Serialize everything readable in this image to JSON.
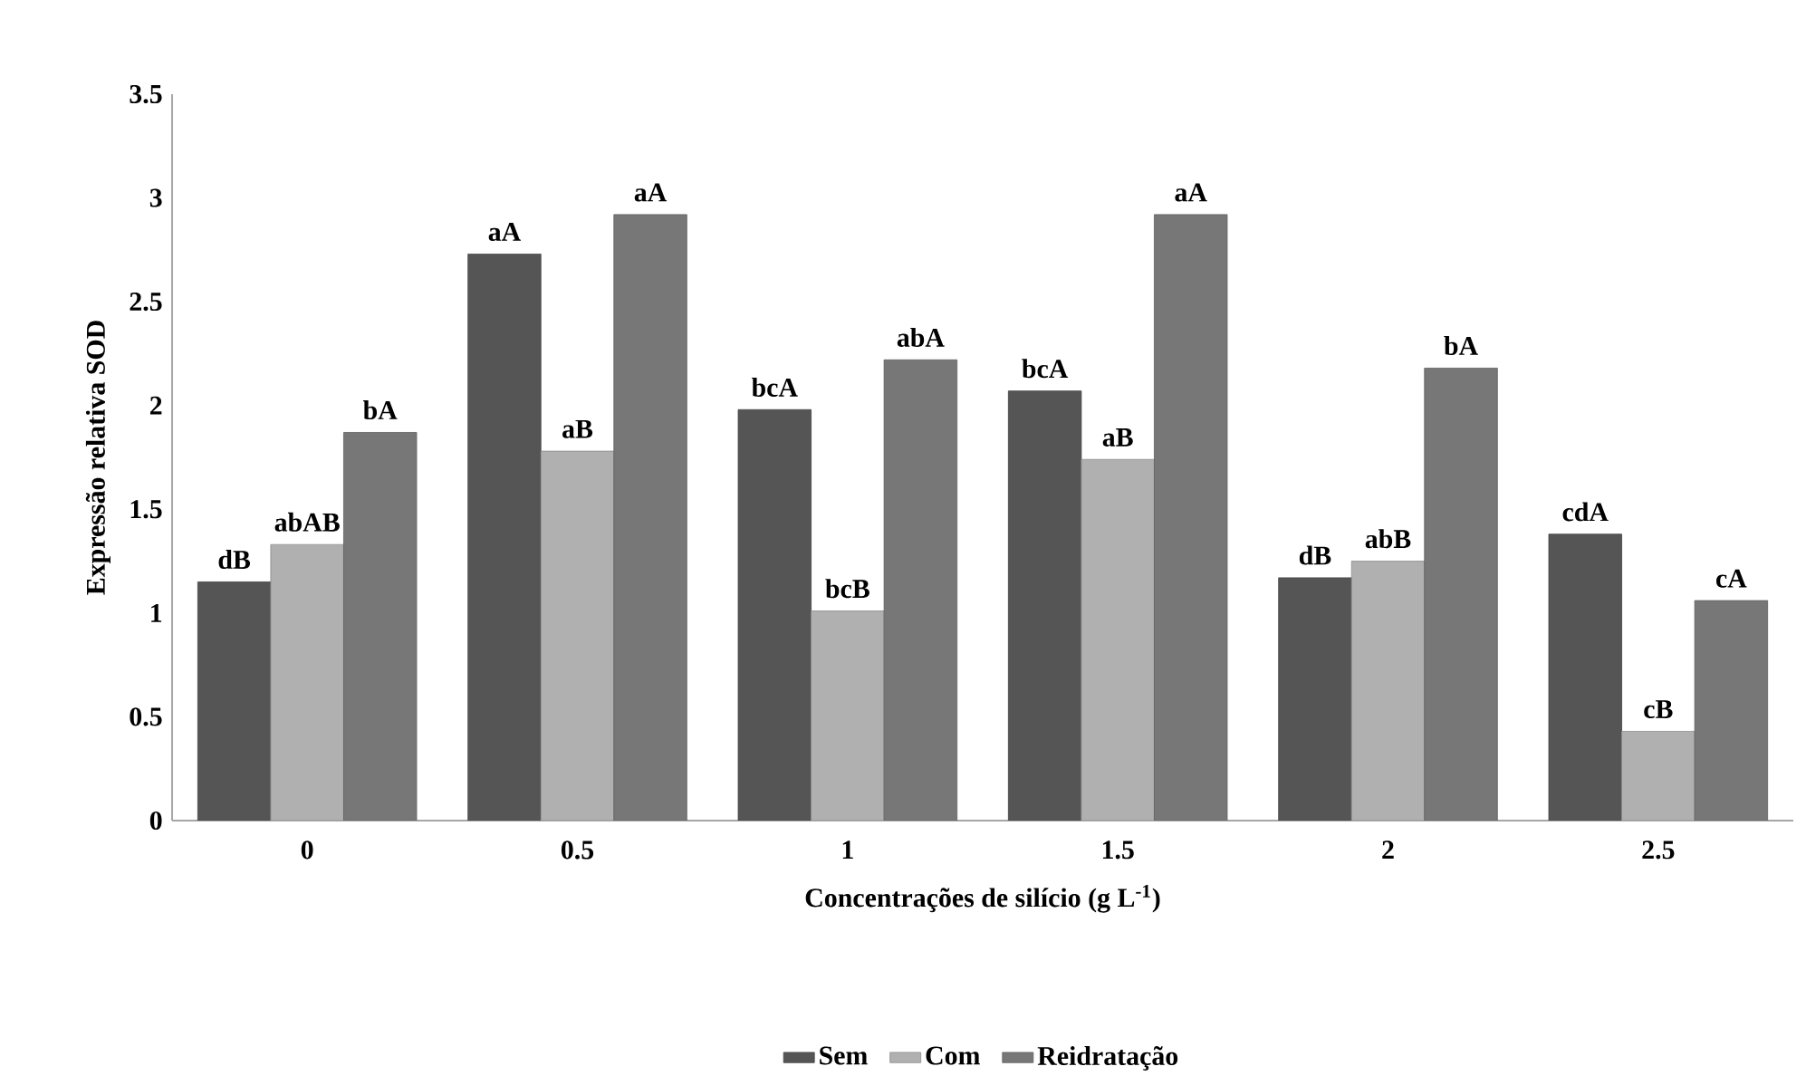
{
  "chart_data": {
    "type": "bar",
    "xlabel": "Concentrações de silício (g L$^{-1}$)",
    "ylabel": "Expressão relativa SOD",
    "categories": [
      "0",
      "0.5",
      "1",
      "1.5",
      "2",
      "2.5"
    ],
    "series": [
      {
        "name": "Sem",
        "color": "#555555",
        "values": [
          1.15,
          2.73,
          1.98,
          2.07,
          1.17,
          1.38
        ],
        "value_labels": [
          "dB",
          "aA",
          "bcA",
          "bcA",
          "dB",
          "cdA"
        ]
      },
      {
        "name": "Com",
        "color": "#b0b0b0",
        "values": [
          1.33,
          1.78,
          1.01,
          1.74,
          1.25,
          0.43
        ],
        "value_labels": [
          "abAB",
          "aB",
          "bcB",
          "aB",
          "abB",
          "cB"
        ]
      },
      {
        "name": "Reidratação",
        "color": "#777777",
        "values": [
          1.87,
          2.92,
          2.22,
          2.92,
          2.18,
          1.06
        ],
        "value_labels": [
          "bA",
          "aA",
          "abA",
          "aA",
          "bA",
          "cA"
        ]
      }
    ],
    "ylim": [
      0,
      3.5
    ],
    "yticks": [
      0,
      0.5,
      1,
      1.5,
      2,
      2.5,
      3,
      3.5
    ],
    "grid": false,
    "legend": "bottom"
  }
}
